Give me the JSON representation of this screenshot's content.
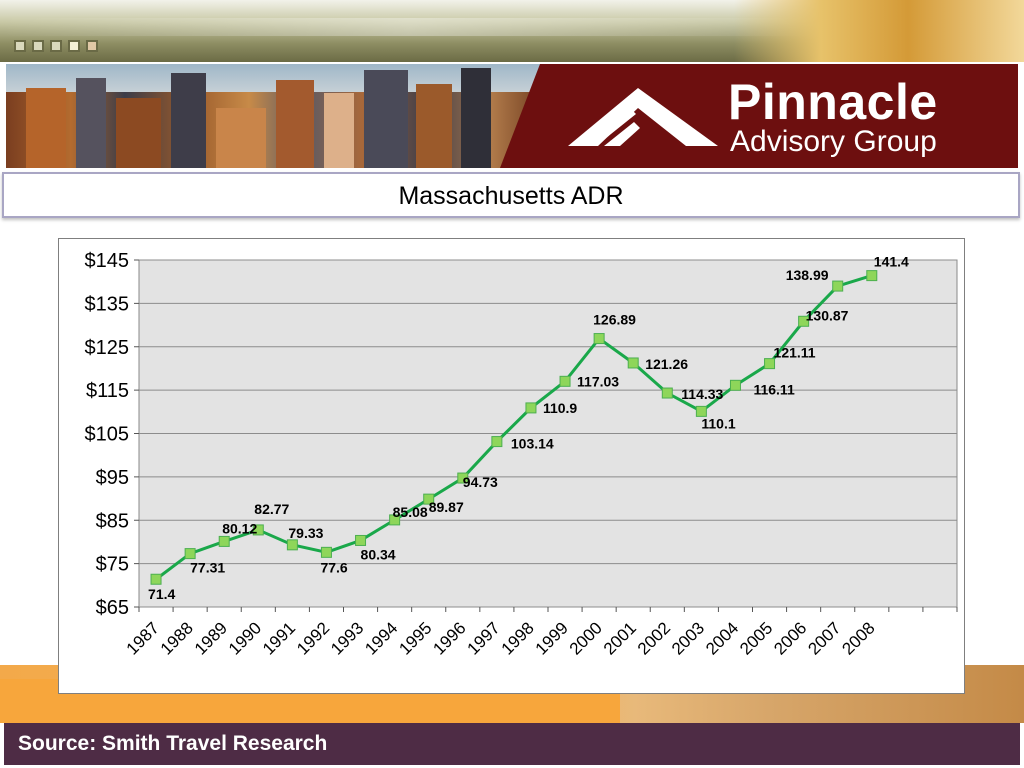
{
  "window": {
    "buttons": [
      "minimize",
      "restore",
      "maximize",
      "help",
      "close"
    ]
  },
  "branding": {
    "name": "Pinnacle",
    "subtitle": "Advisory Group",
    "logo_icon": "mountain-peak-icon",
    "accent_color": "#6d0f0f"
  },
  "slide": {
    "title": "Massachusetts ADR",
    "source": "Source: Smith Travel Research"
  },
  "chart_data": {
    "type": "line",
    "x": [
      "1987",
      "1988",
      "1989",
      "1990",
      "1991",
      "1992",
      "1993",
      "1994",
      "1995",
      "1996",
      "1997",
      "1998",
      "1999",
      "2000",
      "2001",
      "2002",
      "2003",
      "2004",
      "2005",
      "2006",
      "2007",
      "2008"
    ],
    "series": [
      {
        "values": [
          71.4,
          77.31,
          80.12,
          82.77,
          79.33,
          77.6,
          80.34,
          85.08,
          89.87,
          94.73,
          103.14,
          110.9,
          117.03,
          126.89,
          121.26,
          114.33,
          110.1,
          116.11,
          121.11,
          130.87,
          138.99,
          141.4
        ],
        "labels": [
          "71.4",
          "77.31",
          "80.12",
          "82.77",
          "79.33",
          "77.6",
          "80.34",
          "85.08",
          "89.87",
          "94.73",
          "103.14",
          "110.9",
          "117.03",
          "126.89",
          "121.26",
          "114.33",
          "110.1",
          "116.11",
          "121.11",
          "130.87",
          "138.99",
          "141.4"
        ],
        "color": "#1aa84a",
        "marker_color": "#8ed65a"
      }
    ],
    "ylim": [
      65,
      145
    ],
    "yticks": [
      65,
      75,
      85,
      95,
      105,
      115,
      125,
      135,
      145
    ],
    "ytick_labels": [
      "$65",
      "$75",
      "$85",
      "$95",
      "$105",
      "$115",
      "$125",
      "$135",
      "$145"
    ],
    "grid": true,
    "plot_background": "#e3e3e3"
  }
}
